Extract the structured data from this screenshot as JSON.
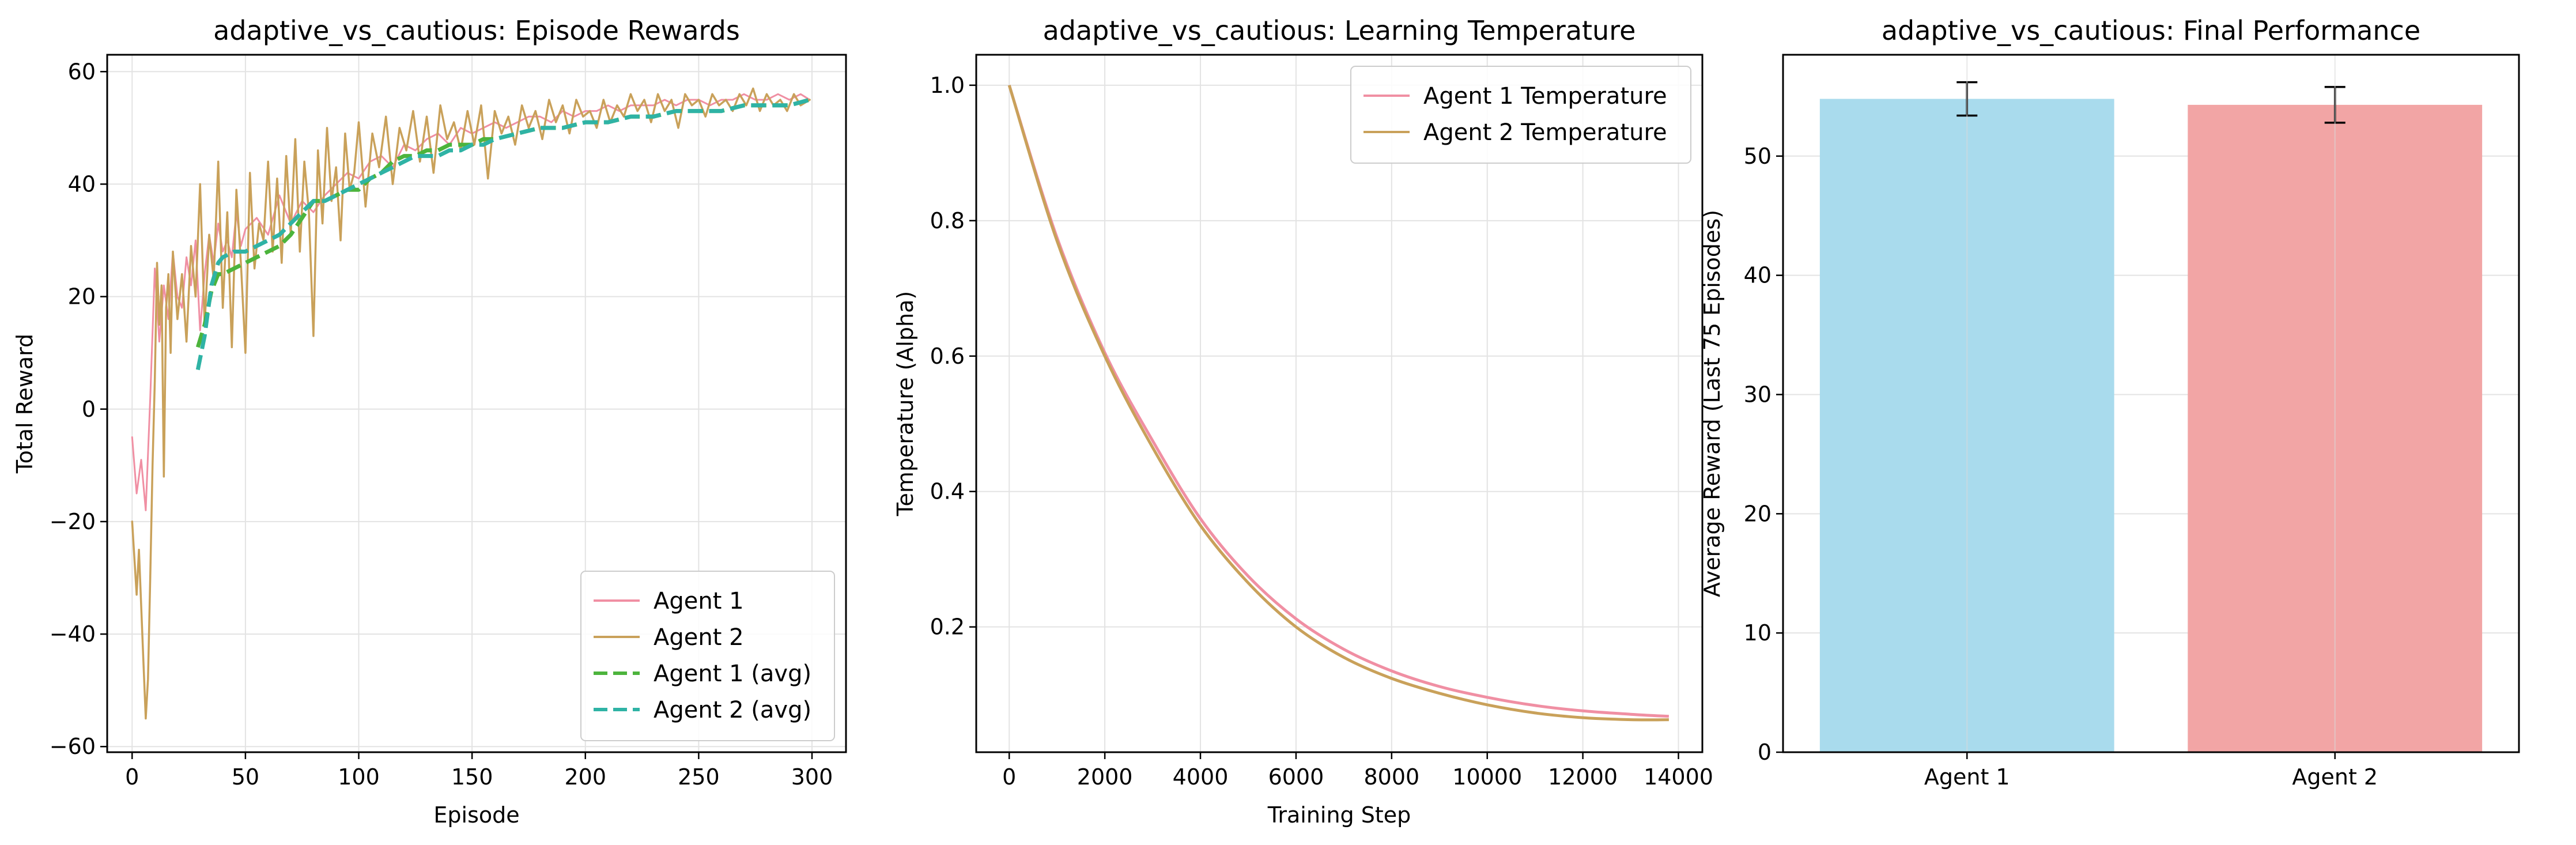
{
  "chart_data": [
    {
      "type": "line",
      "title": "adaptive_vs_cautious: Episode Rewards",
      "xlabel": "Episode",
      "ylabel": "Total Reward",
      "xlim": [
        -11,
        315
      ],
      "ylim": [
        -61,
        63
      ],
      "xticks": [
        0,
        50,
        100,
        150,
        200,
        250,
        300
      ],
      "yticks": [
        -60,
        -40,
        -20,
        0,
        20,
        40,
        60
      ],
      "grid": true,
      "legend_position": "lower right",
      "legend": [
        "Agent 1",
        "Agent 2",
        "Agent 1 (avg)",
        "Agent 2 (avg)"
      ],
      "series": [
        {
          "name": "Agent 1",
          "color": "#f08fa3",
          "style": "solid",
          "x": [
            0,
            2,
            4,
            6,
            8,
            10,
            12,
            14,
            16,
            18,
            20,
            22,
            24,
            26,
            28,
            30,
            32,
            34,
            36,
            38,
            40,
            42,
            44,
            46,
            48,
            50,
            55,
            60,
            65,
            70,
            75,
            80,
            85,
            90,
            95,
            100,
            105,
            110,
            115,
            120,
            125,
            130,
            135,
            140,
            145,
            150,
            155,
            160,
            165,
            170,
            175,
            180,
            185,
            190,
            195,
            200,
            205,
            210,
            215,
            220,
            225,
            230,
            235,
            240,
            245,
            250,
            255,
            260,
            265,
            270,
            275,
            280,
            285,
            290,
            295,
            299
          ],
          "y": [
            -5,
            -15,
            -9,
            -18,
            2,
            25,
            12,
            22,
            16,
            28,
            20,
            18,
            27,
            22,
            30,
            14,
            24,
            31,
            26,
            33,
            28,
            30,
            27,
            35,
            29,
            32,
            34,
            31,
            38,
            33,
            37,
            35,
            38,
            40,
            42,
            41,
            44,
            45,
            43,
            47,
            46,
            48,
            49,
            47,
            50,
            49,
            50,
            51,
            50,
            51,
            52,
            52,
            51,
            53,
            52,
            53,
            53,
            54,
            53,
            54,
            54,
            54,
            55,
            54,
            55,
            55,
            54,
            55,
            55,
            56,
            55,
            55,
            56,
            55,
            56,
            55
          ]
        },
        {
          "name": "Agent 2",
          "color": "#c9a15a",
          "style": "solid",
          "x": [
            0,
            2,
            3,
            4,
            5,
            6,
            7,
            8,
            9,
            10,
            11,
            12,
            13,
            14,
            15,
            16,
            17,
            18,
            20,
            22,
            24,
            26,
            28,
            30,
            32,
            34,
            36,
            38,
            40,
            42,
            44,
            46,
            48,
            50,
            52,
            54,
            56,
            58,
            60,
            62,
            64,
            66,
            68,
            70,
            72,
            74,
            76,
            78,
            80,
            82,
            84,
            86,
            88,
            90,
            92,
            94,
            96,
            98,
            100,
            103,
            106,
            109,
            112,
            115,
            118,
            121,
            124,
            127,
            130,
            133,
            136,
            139,
            142,
            145,
            148,
            151,
            154,
            157,
            160,
            163,
            166,
            169,
            172,
            175,
            178,
            181,
            184,
            187,
            190,
            193,
            196,
            199,
            202,
            205,
            208,
            211,
            214,
            217,
            220,
            223,
            226,
            229,
            232,
            235,
            238,
            241,
            244,
            247,
            250,
            253,
            256,
            259,
            262,
            265,
            268,
            271,
            274,
            277,
            280,
            283,
            286,
            289,
            292,
            295,
            299
          ],
          "y": [
            -20,
            -33,
            -25,
            -35,
            -45,
            -55,
            -48,
            -30,
            -10,
            5,
            26,
            15,
            22,
            -12,
            18,
            24,
            10,
            28,
            16,
            24,
            12,
            29,
            20,
            40,
            15,
            31,
            23,
            44,
            18,
            35,
            11,
            39,
            26,
            10,
            42,
            25,
            33,
            30,
            44,
            28,
            41,
            26,
            45,
            31,
            48,
            28,
            44,
            35,
            13,
            46,
            33,
            50,
            37,
            43,
            30,
            49,
            39,
            42,
            51,
            36,
            49,
            43,
            52,
            40,
            50,
            46,
            53,
            44,
            52,
            42,
            54,
            48,
            51,
            46,
            53,
            47,
            54,
            41,
            53,
            49,
            52,
            47,
            54,
            50,
            53,
            48,
            55,
            51,
            54,
            49,
            55,
            52,
            53,
            50,
            55,
            51,
            54,
            52,
            56,
            53,
            55,
            51,
            56,
            53,
            55,
            50,
            56,
            54,
            55,
            52,
            56,
            54,
            55,
            53,
            56,
            54,
            57,
            53,
            56,
            54,
            55,
            53,
            56,
            54,
            55
          ]
        },
        {
          "name": "Agent 1 (avg)",
          "color": "#4cb43c",
          "style": "dashed",
          "x": [
            29,
            32,
            35,
            38,
            40,
            45,
            50,
            55,
            60,
            65,
            70,
            75,
            80,
            85,
            90,
            95,
            100,
            105,
            110,
            115,
            120,
            125,
            130,
            135,
            140,
            145,
            150,
            155,
            160,
            170,
            180,
            190,
            200,
            210,
            220,
            230,
            240,
            250,
            260,
            270,
            280,
            290,
            299
          ],
          "y": [
            11,
            15,
            21,
            24,
            24,
            25,
            26,
            27,
            28,
            29,
            31,
            34,
            37,
            37,
            38,
            39,
            39,
            41,
            42,
            44,
            45,
            45,
            46,
            46,
            47,
            47,
            47,
            48,
            48,
            49,
            50,
            50,
            51,
            51,
            52,
            52,
            53,
            53,
            53,
            54,
            54,
            54,
            55
          ]
        },
        {
          "name": "Agent 2 (avg)",
          "color": "#2fb3a5",
          "style": "dashed",
          "x": [
            29,
            32,
            35,
            38,
            40,
            45,
            50,
            55,
            60,
            65,
            70,
            75,
            80,
            85,
            90,
            95,
            100,
            105,
            110,
            115,
            120,
            125,
            130,
            135,
            140,
            145,
            150,
            155,
            160,
            170,
            180,
            190,
            200,
            210,
            220,
            230,
            240,
            250,
            260,
            270,
            280,
            290,
            299
          ],
          "y": [
            7,
            13,
            22,
            26,
            27,
            28,
            28,
            29,
            30,
            31,
            33,
            35,
            37,
            37,
            38,
            39,
            40,
            41,
            42,
            43,
            44,
            45,
            45,
            45,
            46,
            46,
            47,
            47,
            48,
            49,
            50,
            50,
            51,
            51,
            52,
            52,
            53,
            53,
            53,
            54,
            54,
            54,
            55
          ]
        }
      ]
    },
    {
      "type": "line",
      "title": "adaptive_vs_cautious: Learning Temperature",
      "xlabel": "Training Step",
      "ylabel": "Temperature (Alpha)",
      "xlim": [
        -690,
        14500
      ],
      "ylim": [
        0.015,
        1.045
      ],
      "xticks": [
        0,
        2000,
        4000,
        6000,
        8000,
        10000,
        12000,
        14000
      ],
      "yticks": [
        0.2,
        0.4,
        0.6,
        0.8,
        1.0
      ],
      "ytick_labels": [
        "0.2",
        "0.4",
        "0.6",
        "0.8",
        "1.0"
      ],
      "grid": true,
      "legend_position": "upper right",
      "legend": [
        "Agent 1 Temperature",
        "Agent 2 Temperature"
      ],
      "series": [
        {
          "name": "Agent 1 Temperature",
          "color": "#f08fa3",
          "x": [
            0,
            1000,
            2000,
            3000,
            4000,
            5000,
            6000,
            7000,
            8000,
            9000,
            10000,
            11000,
            12000,
            13000,
            13800
          ],
          "y": [
            1.0,
            0.775,
            0.605,
            0.475,
            0.36,
            0.275,
            0.212,
            0.167,
            0.135,
            0.112,
            0.096,
            0.084,
            0.076,
            0.071,
            0.068
          ]
        },
        {
          "name": "Agent 2 Temperature",
          "color": "#c9a15a",
          "x": [
            0,
            1000,
            2000,
            3000,
            4000,
            5000,
            6000,
            7000,
            8000,
            9000,
            10000,
            11000,
            12000,
            13000,
            13800
          ],
          "y": [
            1.0,
            0.77,
            0.6,
            0.465,
            0.35,
            0.265,
            0.2,
            0.155,
            0.124,
            0.102,
            0.085,
            0.073,
            0.066,
            0.063,
            0.063
          ]
        }
      ]
    },
    {
      "type": "bar",
      "title": "adaptive_vs_cautious: Final Performance",
      "xlabel": "",
      "ylabel": "Average Reward (Last 75 Episodes)",
      "ylim": [
        0,
        58.5
      ],
      "yticks": [
        0,
        10,
        20,
        30,
        40,
        50
      ],
      "categories": [
        "Agent 1",
        "Agent 2"
      ],
      "values": [
        54.8,
        54.3
      ],
      "errors": [
        1.4,
        1.5
      ],
      "colors": [
        "#a9dbed",
        "#f2a5a5"
      ],
      "grid": true
    }
  ]
}
